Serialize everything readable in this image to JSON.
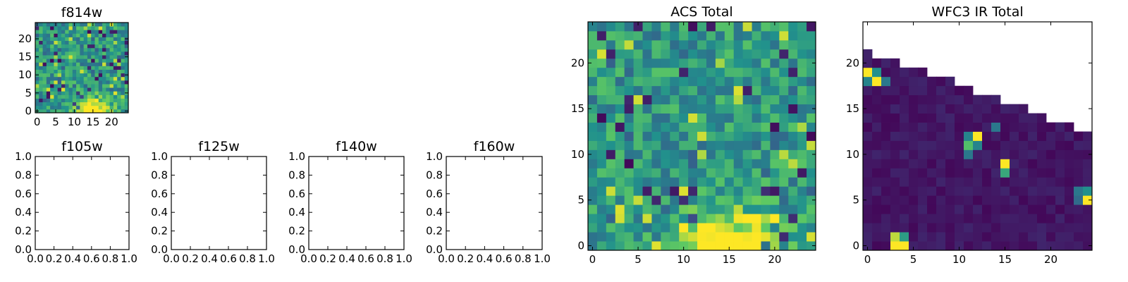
{
  "colormap": [
    "#440154",
    "#3b528b",
    "#21918c",
    "#5ec962",
    "#fde725"
  ],
  "chart_data": [
    {
      "type": "heatmap",
      "title": "f814w",
      "grid": [
        25,
        25
      ],
      "xlim": [
        -0.5,
        24.5
      ],
      "ylim": [
        -0.5,
        24.5
      ],
      "xticks": [
        0,
        5,
        10,
        15,
        20
      ],
      "xtick_labels": [
        "0",
        "5",
        "10",
        "15",
        "20"
      ],
      "yticks": [
        0,
        5,
        10,
        15,
        20
      ],
      "ytick_labels": [
        "0",
        "5",
        "10",
        "15",
        "20"
      ],
      "pattern": "acs"
    },
    {
      "type": "empty",
      "title": "f105w",
      "xlim": [
        0,
        1
      ],
      "ylim": [
        0,
        1
      ],
      "xticks": [
        0,
        0.2,
        0.4,
        0.6,
        0.8,
        1.0
      ],
      "xtick_labels": [
        "0.0",
        "0.2",
        "0.4",
        "0.6",
        "0.8",
        "1.0"
      ],
      "yticks": [
        0,
        0.2,
        0.4,
        0.6,
        0.8,
        1.0
      ],
      "ytick_labels": [
        "0.0",
        "0.2",
        "0.4",
        "0.6",
        "0.8",
        "1.0"
      ]
    },
    {
      "type": "empty",
      "title": "f125w",
      "xlim": [
        0,
        1
      ],
      "ylim": [
        0,
        1
      ],
      "xticks": [
        0,
        0.2,
        0.4,
        0.6,
        0.8,
        1.0
      ],
      "xtick_labels": [
        "0.0",
        "0.2",
        "0.4",
        "0.6",
        "0.8",
        "1.0"
      ],
      "yticks": [
        0,
        0.2,
        0.4,
        0.6,
        0.8,
        1.0
      ],
      "ytick_labels": [
        "0.0",
        "0.2",
        "0.4",
        "0.6",
        "0.8",
        "1.0"
      ]
    },
    {
      "type": "empty",
      "title": "f140w",
      "xlim": [
        0,
        1
      ],
      "ylim": [
        0,
        1
      ],
      "xticks": [
        0,
        0.2,
        0.4,
        0.6,
        0.8,
        1.0
      ],
      "xtick_labels": [
        "0.0",
        "0.2",
        "0.4",
        "0.6",
        "0.8",
        "1.0"
      ],
      "yticks": [
        0,
        0.2,
        0.4,
        0.6,
        0.8,
        1.0
      ],
      "ytick_labels": [
        "0.0",
        "0.2",
        "0.4",
        "0.6",
        "0.8",
        "1.0"
      ]
    },
    {
      "type": "empty",
      "title": "f160w",
      "xlim": [
        0,
        1
      ],
      "ylim": [
        0,
        1
      ],
      "xticks": [
        0,
        0.2,
        0.4,
        0.6,
        0.8,
        1.0
      ],
      "xtick_labels": [
        "0.0",
        "0.2",
        "0.4",
        "0.6",
        "0.8",
        "1.0"
      ],
      "yticks": [
        0,
        0.2,
        0.4,
        0.6,
        0.8,
        1.0
      ],
      "ytick_labels": [
        "0.0",
        "0.2",
        "0.4",
        "0.6",
        "0.8",
        "1.0"
      ]
    },
    {
      "type": "heatmap",
      "title": "ACS Total",
      "grid": [
        25,
        25
      ],
      "xlim": [
        -0.5,
        24.5
      ],
      "ylim": [
        -0.5,
        24.5
      ],
      "xticks": [
        0,
        5,
        10,
        15,
        20
      ],
      "xtick_labels": [
        "0",
        "5",
        "10",
        "15",
        "20"
      ],
      "yticks": [
        0,
        5,
        10,
        15,
        20
      ],
      "ytick_labels": [
        "0",
        "5",
        "10",
        "15",
        "20"
      ],
      "pattern": "acs"
    },
    {
      "type": "heatmap",
      "title": "WFC3 IR Total",
      "grid": [
        25,
        25
      ],
      "xlim": [
        -0.5,
        24.5
      ],
      "ylim": [
        -0.5,
        24.5
      ],
      "xticks": [
        0,
        5,
        10,
        15,
        20
      ],
      "xtick_labels": [
        "0",
        "5",
        "10",
        "15",
        "20"
      ],
      "yticks": [
        0,
        5,
        10,
        15,
        20
      ],
      "ytick_labels": [
        "0",
        "5",
        "10",
        "15",
        "20"
      ],
      "pattern": "wfc3",
      "column_heights": [
        22,
        21,
        21,
        21,
        20,
        20,
        20,
        19,
        19,
        19,
        18,
        18,
        17,
        17,
        17,
        16,
        16,
        16,
        15,
        15,
        14,
        14,
        14,
        13,
        13
      ],
      "hot_pixels": [
        {
          "x": 0,
          "y": 19,
          "v": 1.0
        },
        {
          "x": 1,
          "y": 19,
          "v": 0.5
        },
        {
          "x": 0,
          "y": 18,
          "v": 0.45
        },
        {
          "x": 1,
          "y": 18,
          "v": 1.0
        },
        {
          "x": 2,
          "y": 18,
          "v": 0.4
        },
        {
          "x": 11,
          "y": 12,
          "v": 0.45
        },
        {
          "x": 12,
          "y": 12,
          "v": 1.0
        },
        {
          "x": 11,
          "y": 11,
          "v": 0.7
        },
        {
          "x": 12,
          "y": 11,
          "v": 0.45
        },
        {
          "x": 11,
          "y": 10,
          "v": 0.4
        },
        {
          "x": 14,
          "y": 13,
          "v": 0.4
        },
        {
          "x": 15,
          "y": 9,
          "v": 1.0
        },
        {
          "x": 15,
          "y": 8,
          "v": 0.6
        },
        {
          "x": 23,
          "y": 6,
          "v": 0.4
        },
        {
          "x": 24,
          "y": 6,
          "v": 0.5
        },
        {
          "x": 23,
          "y": 5,
          "v": 0.35
        },
        {
          "x": 24,
          "y": 5,
          "v": 1.0
        },
        {
          "x": 3,
          "y": 1,
          "v": 0.9
        },
        {
          "x": 4,
          "y": 1,
          "v": 0.55
        },
        {
          "x": 3,
          "y": 0,
          "v": 1.0
        },
        {
          "x": 4,
          "y": 0,
          "v": 1.0
        }
      ]
    }
  ]
}
